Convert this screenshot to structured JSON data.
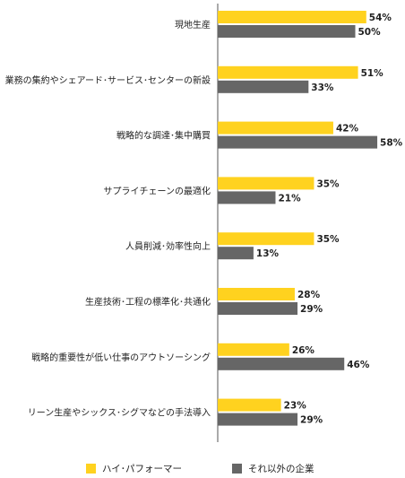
{
  "chart_data": {
    "type": "bar",
    "orientation": "horizontal",
    "categories": [
      "現地生産",
      "業務の集約やシェアード･サービス･センターの新設",
      "戦略的な調達･集中購買",
      "サプライチェーンの最適化",
      "人員削減･効率性向上",
      "生産技術･工程の標準化･共通化",
      "戦略的重要性が低い仕事のアウトソーシング",
      "リーン生産やシックス･シグマなどの手法導入"
    ],
    "series": [
      {
        "name": "ハイ･パフォーマー",
        "color": "#FFD21F",
        "values": [
          54,
          51,
          42,
          35,
          35,
          28,
          26,
          23
        ]
      },
      {
        "name": "それ以外の企業",
        "color": "#666666",
        "values": [
          50,
          33,
          58,
          21,
          13,
          29,
          46,
          29
        ]
      }
    ],
    "value_suffix": "%",
    "xlim": [
      0,
      100
    ],
    "grid": false,
    "legend_position": "bottom"
  }
}
